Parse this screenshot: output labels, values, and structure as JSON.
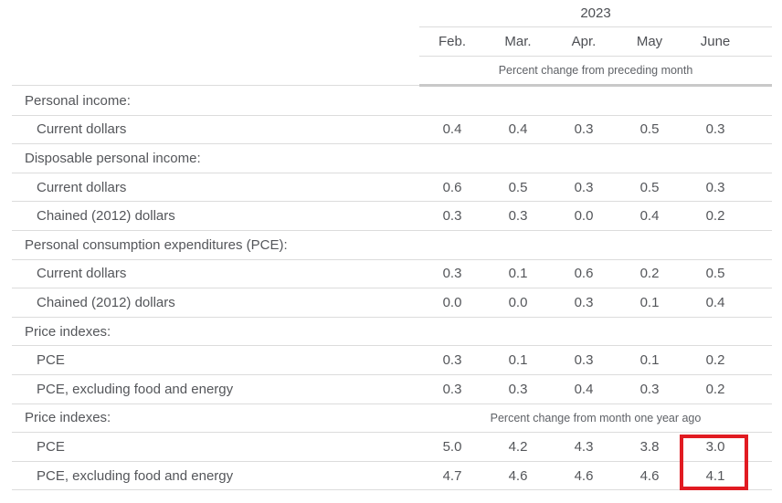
{
  "table": {
    "year_header": "2023",
    "columns": [
      "Feb.",
      "Mar.",
      "Apr.",
      "May",
      "June"
    ],
    "unit_note_top": "Percent change from preceding month",
    "unit_note_bottom": "Percent change from month one year ago",
    "rows": [
      {
        "type": "group",
        "label": "Personal income:"
      },
      {
        "type": "data",
        "label": "Current dollars",
        "values": [
          "0.4",
          "0.4",
          "0.3",
          "0.5",
          "0.3"
        ]
      },
      {
        "type": "group",
        "label": "Disposable personal income:"
      },
      {
        "type": "data",
        "label": "Current dollars",
        "values": [
          "0.6",
          "0.5",
          "0.3",
          "0.5",
          "0.3"
        ]
      },
      {
        "type": "data",
        "label": "Chained (2012) dollars",
        "values": [
          "0.3",
          "0.3",
          "0.0",
          "0.4",
          "0.2"
        ]
      },
      {
        "type": "group",
        "label": "Personal consumption expenditures (PCE):"
      },
      {
        "type": "data",
        "label": "Current dollars",
        "values": [
          "0.3",
          "0.1",
          "0.6",
          "0.2",
          "0.5"
        ]
      },
      {
        "type": "data",
        "label": "Chained (2012) dollars",
        "values": [
          "0.0",
          "0.0",
          "0.3",
          "0.1",
          "0.4"
        ]
      },
      {
        "type": "group",
        "label": "Price indexes:"
      },
      {
        "type": "data",
        "label": "PCE",
        "values": [
          "0.3",
          "0.1",
          "0.3",
          "0.1",
          "0.2"
        ]
      },
      {
        "type": "data",
        "label": "PCE, excluding food and energy",
        "values": [
          "0.3",
          "0.3",
          "0.4",
          "0.3",
          "0.2"
        ]
      },
      {
        "type": "group-note",
        "label": "Price indexes:",
        "note": "Percent change from month one year ago"
      },
      {
        "type": "data",
        "label": "PCE",
        "values": [
          "5.0",
          "4.2",
          "4.3",
          "3.8",
          "3.0"
        ]
      },
      {
        "type": "data",
        "label": "PCE, excluding food and energy",
        "values": [
          "4.7",
          "4.6",
          "4.6",
          "4.6",
          "4.1"
        ]
      }
    ],
    "highlight": {
      "column": "June",
      "highlighted_values": [
        "3.0",
        "4.1"
      ],
      "color": "#e11b22"
    },
    "colors": {
      "text": "#54565a",
      "separator": "#dcdcdc",
      "thick_rule": "#c9c9c9"
    }
  }
}
